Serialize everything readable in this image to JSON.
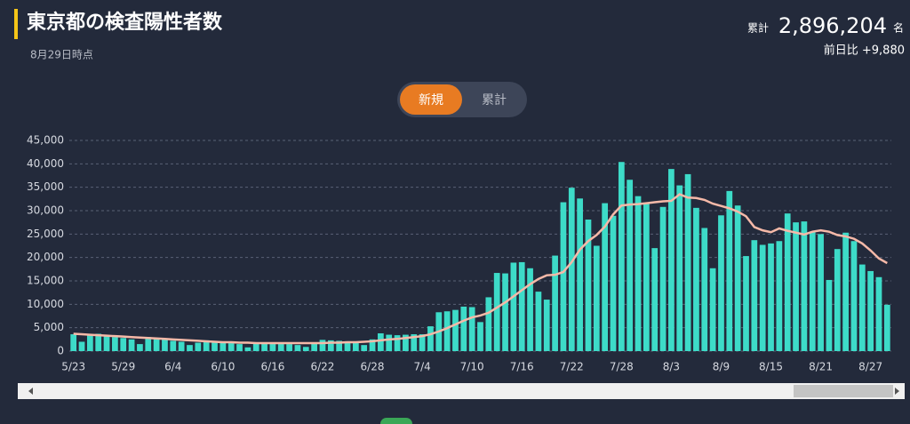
{
  "header": {
    "title": "東京都の検査陽性者数",
    "date": "8月29日時点",
    "total_label": "累計",
    "total": "2,896,204",
    "unit": "名",
    "diff": "前日比 +9,880"
  },
  "tabs": [
    "新規",
    "累計"
  ],
  "chart_data": {
    "type": "bar",
    "categories": [
      "5/23",
      null,
      null,
      null,
      null,
      null,
      "5/29",
      null,
      null,
      null,
      null,
      null,
      "6/4",
      null,
      null,
      null,
      null,
      null,
      "6/10",
      null,
      null,
      null,
      null,
      null,
      "6/16",
      null,
      null,
      null,
      null,
      null,
      "6/22",
      null,
      null,
      null,
      null,
      null,
      "6/28",
      null,
      null,
      null,
      null,
      null,
      "7/4",
      null,
      null,
      null,
      null,
      null,
      "7/10",
      null,
      null,
      null,
      null,
      null,
      "7/16",
      null,
      null,
      null,
      null,
      null,
      "7/22",
      null,
      null,
      null,
      null,
      null,
      "7/28",
      null,
      null,
      null,
      null,
      null,
      "8/3",
      null,
      null,
      null,
      null,
      null,
      "8/9",
      null,
      null,
      null,
      null,
      null,
      "8/15",
      null,
      null,
      null,
      null,
      null,
      "8/21",
      null,
      null,
      null,
      null,
      null,
      "8/27",
      null,
      null
    ],
    "series": [
      {
        "color": "#3ddbc8",
        "values": [
          3600,
          2000,
          3600,
          3700,
          3300,
          3000,
          2800,
          2500,
          1500,
          3000,
          2700,
          2500,
          2200,
          2000,
          1300,
          1800,
          2300,
          2000,
          1900,
          1700,
          1500,
          800,
          1600,
          1900,
          1700,
          1600,
          1500,
          1300,
          900,
          1600,
          2400,
          2300,
          2200,
          2100,
          2000,
          1300,
          2500,
          3800,
          3500,
          3400,
          3500,
          3600,
          3600,
          5300,
          8300,
          8500,
          8800,
          9500,
          9400,
          6200,
          11500,
          16700,
          16600,
          18900,
          19000,
          17700,
          12700,
          11000,
          20400,
          31800,
          34900,
          32600,
          28100,
          22500,
          31600,
          28900,
          40400,
          36600,
          33100,
          31500,
          22000,
          30800,
          38900,
          35400,
          37800,
          30600,
          26300,
          17700,
          29000,
          34200,
          31100,
          20300,
          23700,
          22700,
          23000,
          23500,
          29400,
          27500,
          27700,
          25400,
          25000,
          15200,
          21800,
          25300,
          23500,
          18500,
          17100,
          15800,
          9900
        ]
      },
      {
        "type": "line",
        "color": "#f6b9a8",
        "values": [
          3700,
          3600,
          3500,
          3400,
          3300,
          3200,
          3100,
          3000,
          2900,
          2800,
          2700,
          2600,
          2500,
          2400,
          2300,
          2200,
          2100,
          2000,
          1900,
          1900,
          1800,
          1800,
          1700,
          1700,
          1700,
          1700,
          1700,
          1700,
          1700,
          1700,
          1700,
          1800,
          1800,
          1900,
          1900,
          2000,
          2100,
          2300,
          2500,
          2600,
          2800,
          3000,
          3200,
          3600,
          4200,
          4900,
          5700,
          6500,
          7200,
          7600,
          8200,
          9300,
          10400,
          11700,
          13000,
          14300,
          15400,
          16200,
          16300,
          16900,
          19000,
          21700,
          23500,
          24800,
          26600,
          29200,
          31100,
          31300,
          31400,
          31600,
          31800,
          32000,
          32100,
          33500,
          32800,
          32700,
          32300,
          31500,
          31000,
          30500,
          29800,
          28800,
          26500,
          25800,
          25400,
          26200,
          25700,
          25300,
          24900,
          25500,
          25800,
          25500,
          24800,
          24500,
          24000,
          23000,
          21500,
          19800,
          18800
        ]
      }
    ],
    "ylim": [
      0,
      45000
    ],
    "yticks": [
      0,
      {
        "value": 5000,
        "label": "5,000"
      },
      {
        "value": 10000,
        "label": "10,000"
      },
      {
        "value": 15000,
        "label": "15,000"
      },
      {
        "value": 20000,
        "label": "20,000"
      },
      {
        "value": 25000,
        "label": "25,000"
      },
      {
        "value": 30000,
        "label": "30,000"
      },
      {
        "value": 35000,
        "label": "35,000"
      },
      {
        "value": 40000,
        "label": "40,000"
      },
      {
        "value": 45000,
        "label": "45,000"
      }
    ],
    "grid": true
  }
}
